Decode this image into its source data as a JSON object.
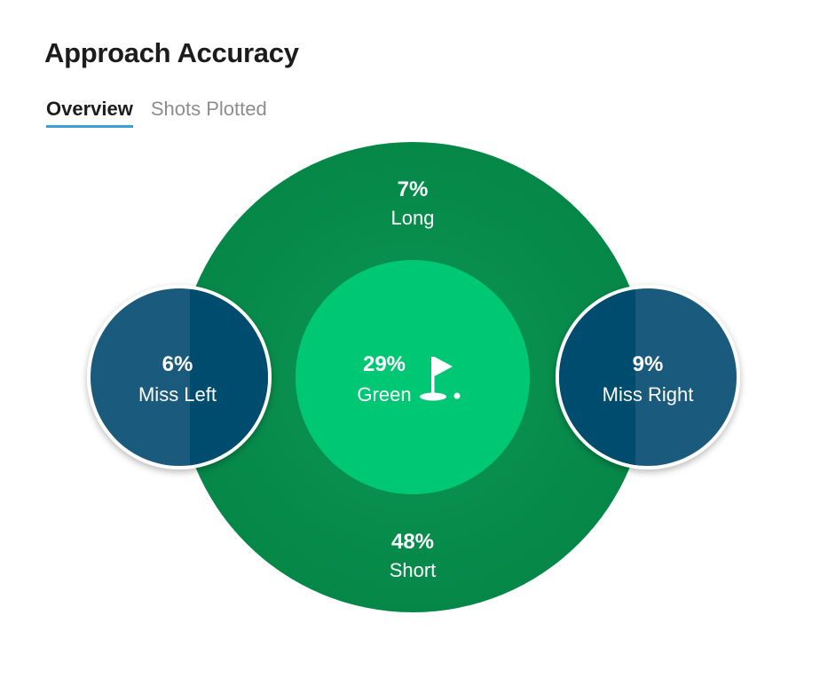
{
  "page": {
    "title": "Approach Accuracy"
  },
  "tabs": [
    {
      "label": "Overview",
      "active": true
    },
    {
      "label": "Shots Plotted",
      "active": false
    }
  ],
  "chart_data": {
    "type": "other",
    "title": "Approach Accuracy",
    "regions": [
      {
        "key": "long",
        "name": "Long",
        "value": 7,
        "display": "7%",
        "color": "#0a8a4c"
      },
      {
        "key": "short",
        "name": "Short",
        "value": 48,
        "display": "48%",
        "color": "#0a8a4c"
      },
      {
        "key": "green",
        "name": "Green",
        "value": 29,
        "display": "29%",
        "color": "#00c774"
      },
      {
        "key": "miss_left",
        "name": "Miss Left",
        "value": 6,
        "display": "6%",
        "color": "#1a5a7c"
      },
      {
        "key": "miss_right",
        "name": "Miss Right",
        "value": 9,
        "display": "9%",
        "color": "#1a5a7c"
      }
    ],
    "green_icon": "golf-flag-icon"
  }
}
